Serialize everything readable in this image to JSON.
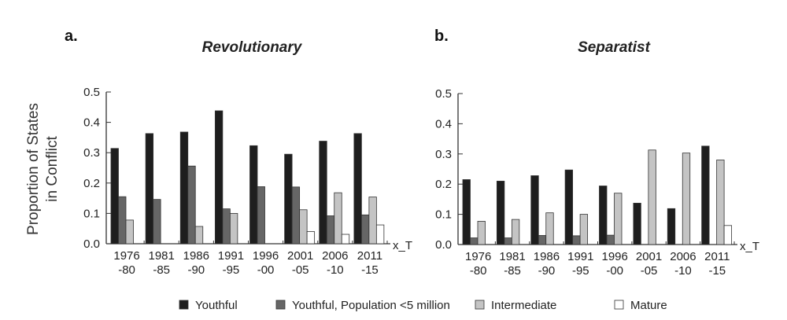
{
  "chart_data": [
    {
      "type": "bar",
      "panel_label": "a.",
      "title": "Revolutionary",
      "ylabel": "Proportion of States in Conflict",
      "ylabel_lines": [
        "Proportion of States",
        "in Conflict"
      ],
      "xlabel": "x_T",
      "ylim": [
        0,
        0.5
      ],
      "yticks": [
        "0.0",
        "0.1",
        "0.2",
        "0.3",
        "0.4",
        "0.5"
      ],
      "categories": [
        [
          "1976",
          "-80"
        ],
        [
          "1981",
          "-85"
        ],
        [
          "1986",
          "-90"
        ],
        [
          "1991",
          "-95"
        ],
        [
          "1996",
          "-00"
        ],
        [
          "2001",
          "-05"
        ],
        [
          "2006",
          "-10"
        ],
        [
          "2011",
          "-15"
        ]
      ],
      "series": [
        {
          "name": "Youthful",
          "values": [
            0.314,
            0.363,
            0.368,
            0.438,
            0.323,
            0.295,
            0.338,
            0.363
          ]
        },
        {
          "name": "Youthful, Population <5 million",
          "values": [
            0.155,
            0.146,
            0.256,
            0.115,
            0.188,
            0.187,
            0.092,
            0.095
          ]
        },
        {
          "name": "Intermediate",
          "values": [
            0.078,
            0,
            0.057,
            0.1,
            0,
            0.112,
            0.168,
            0.154
          ]
        },
        {
          "name": "Mature",
          "values": [
            0,
            0,
            0,
            0,
            0,
            0.04,
            0.031,
            0.062
          ]
        }
      ]
    },
    {
      "type": "bar",
      "panel_label": "b.",
      "title": "Separatist",
      "xlabel": "x_T",
      "ylim": [
        0,
        0.5
      ],
      "yticks": [
        "0.0",
        "0.1",
        "0.2",
        "0.3",
        "0.4",
        "0.5"
      ],
      "categories": [
        [
          "1976",
          "-80"
        ],
        [
          "1981",
          "-85"
        ],
        [
          "1986",
          "-90"
        ],
        [
          "1991",
          "-95"
        ],
        [
          "1996",
          "-00"
        ],
        [
          "2001",
          "-05"
        ],
        [
          "2006",
          "-10"
        ],
        [
          "2011",
          "-15"
        ]
      ],
      "series": [
        {
          "name": "Youthful",
          "values": [
            0.215,
            0.21,
            0.228,
            0.247,
            0.194,
            0.137,
            0.119,
            0.326
          ]
        },
        {
          "name": "Youthful, Population <5 million",
          "values": [
            0.022,
            0.022,
            0.03,
            0.029,
            0.031,
            0,
            0,
            0
          ]
        },
        {
          "name": "Intermediate",
          "values": [
            0.077,
            0.083,
            0.105,
            0.1,
            0.17,
            0.313,
            0.303,
            0.28
          ]
        },
        {
          "name": "Mature",
          "values": [
            0,
            0,
            0,
            0,
            0,
            0,
            0,
            0.063
          ]
        }
      ]
    }
  ],
  "legend": [
    "Youthful",
    "Youthful, Population <5 million",
    "Intermediate",
    "Mature"
  ],
  "colors": [
    "#1e1e1e",
    "#666666",
    "#c4c4c4",
    "#ffffff"
  ]
}
